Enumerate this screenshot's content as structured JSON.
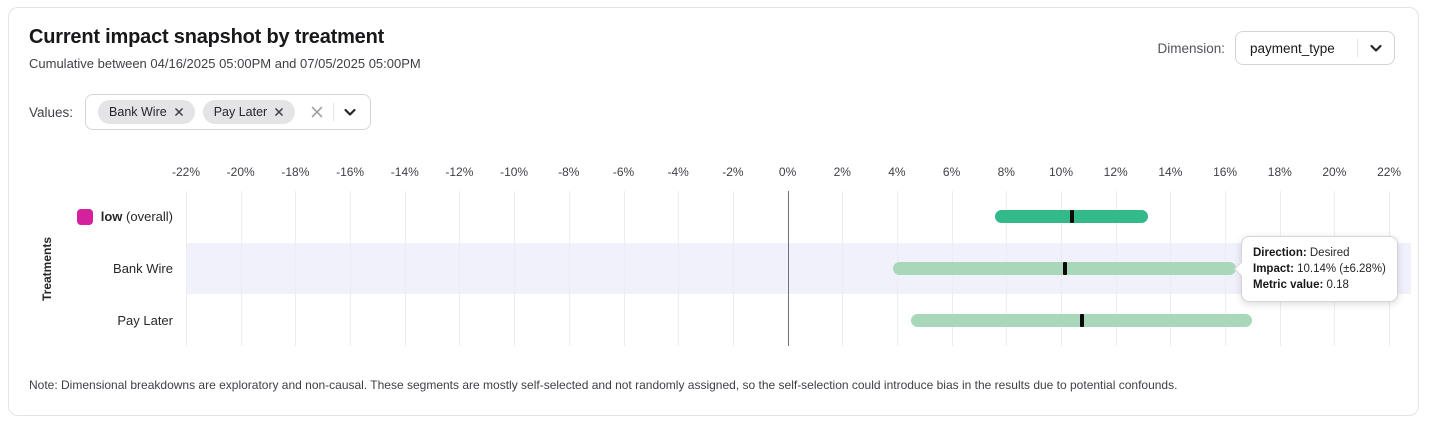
{
  "header": {
    "title": "Current impact snapshot by treatment",
    "subtitle": "Cumulative between 04/16/2025 05:00PM and 07/05/2025 05:00PM"
  },
  "dimension": {
    "label": "Dimension:",
    "selected": "payment_type"
  },
  "filters": {
    "label": "Values:",
    "chips": [
      {
        "label": "Bank Wire"
      },
      {
        "label": "Pay Later"
      }
    ]
  },
  "chart_data": {
    "type": "bar",
    "orientation": "horizontal-range",
    "title": "",
    "xlabel": "",
    "ylabel": "Treatments",
    "axis": {
      "min": -22,
      "max": 22,
      "step": 2,
      "unit": "%"
    },
    "grid": true,
    "zero_line": true,
    "highlight_color": "#f1f1fc",
    "marker_color": "#0a0a0a",
    "rows": [
      {
        "label": "low",
        "suffix": " (overall)",
        "bold": true,
        "swatch": "#d6219c",
        "bar_color": "#34b98b",
        "low": 7.6,
        "high": 13.2,
        "impact": 10.4,
        "highlighted": false
      },
      {
        "label": "Bank Wire",
        "suffix": "",
        "bold": false,
        "swatch": null,
        "bar_color": "#a8d8b9",
        "low": 3.86,
        "high": 16.42,
        "impact": 10.14,
        "highlighted": true
      },
      {
        "label": "Pay Later",
        "suffix": "",
        "bold": false,
        "swatch": null,
        "bar_color": "#a8d8b9",
        "low": 4.5,
        "high": 17.0,
        "impact": 10.75,
        "highlighted": false
      }
    ]
  },
  "tooltip": {
    "rows": [
      {
        "label": "Direction:",
        "value": "Desired"
      },
      {
        "label": "Impact:",
        "value": "10.14% (±6.28%)"
      },
      {
        "label": "Metric value:",
        "value": "0.18"
      }
    ]
  },
  "note": "Note: Dimensional breakdowns are exploratory and non-causal. These segments are mostly self-selected and not randomly assigned, so the self-selection could introduce bias in the results due to potential confounds."
}
